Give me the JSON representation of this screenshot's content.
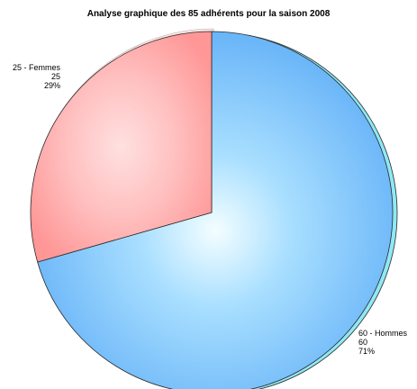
{
  "chart_data": {
    "type": "pie",
    "title": "Analyse graphique des 85 adhérents pour la saison 2008",
    "total": 85,
    "slices": [
      {
        "name": "Hommes",
        "value": 60,
        "percent": 71,
        "color": "#66B3FF",
        "line1": "60 - Hommes",
        "line2": "60",
        "line3": "71%"
      },
      {
        "name": "Femmes",
        "value": 25,
        "percent": 29,
        "color": "#FF9A9A",
        "line1": "25 - Femmes",
        "line2": "25",
        "line3": "29%"
      }
    ],
    "colors": {
      "background": "#FFFFFF",
      "hommes_edge": "#8FE8F5",
      "outline": "#2A2A2A"
    }
  }
}
